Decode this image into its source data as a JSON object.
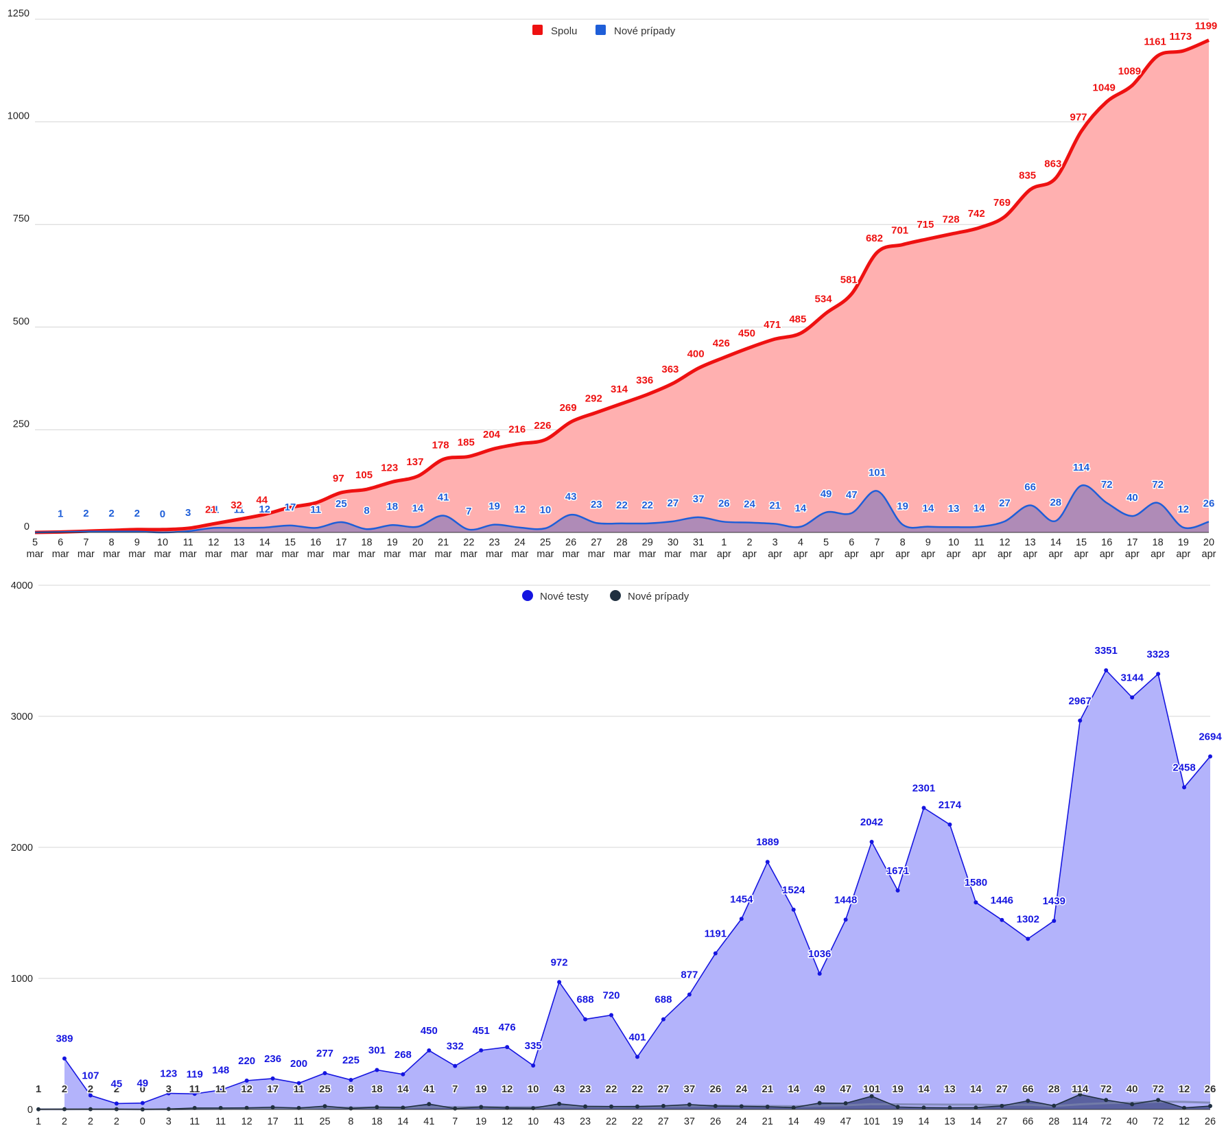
{
  "chart_data": [
    {
      "type": "area",
      "y_ticks": [
        "0",
        "250",
        "500",
        "750",
        "1000",
        "1250"
      ],
      "ylim": [
        0,
        1250
      ],
      "grid": true,
      "legend_position": "top-center",
      "colors": {
        "total": "#ee1111",
        "total_fill": "#ffb0b0",
        "new": "#1e5ed8",
        "new_fill": "rgba(110,110,190,0.55)"
      },
      "categories": [
        [
          "5",
          "mar"
        ],
        [
          "6",
          "mar"
        ],
        [
          "7",
          "mar"
        ],
        [
          "8",
          "mar"
        ],
        [
          "9",
          "mar"
        ],
        [
          "10",
          "mar"
        ],
        [
          "11",
          "mar"
        ],
        [
          "12",
          "mar"
        ],
        [
          "13",
          "mar"
        ],
        [
          "14",
          "mar"
        ],
        [
          "15",
          "mar"
        ],
        [
          "16",
          "mar"
        ],
        [
          "17",
          "mar"
        ],
        [
          "18",
          "mar"
        ],
        [
          "19",
          "mar"
        ],
        [
          "20",
          "mar"
        ],
        [
          "21",
          "mar"
        ],
        [
          "22",
          "mar"
        ],
        [
          "23",
          "mar"
        ],
        [
          "24",
          "mar"
        ],
        [
          "25",
          "mar"
        ],
        [
          "26",
          "mar"
        ],
        [
          "27",
          "mar"
        ],
        [
          "28",
          "mar"
        ],
        [
          "29",
          "mar"
        ],
        [
          "30",
          "mar"
        ],
        [
          "31",
          "mar"
        ],
        [
          "1",
          "apr"
        ],
        [
          "2",
          "apr"
        ],
        [
          "3",
          "apr"
        ],
        [
          "4",
          "apr"
        ],
        [
          "5",
          "apr"
        ],
        [
          "6",
          "apr"
        ],
        [
          "7",
          "apr"
        ],
        [
          "8",
          "apr"
        ],
        [
          "9",
          "apr"
        ],
        [
          "10",
          "apr"
        ],
        [
          "11",
          "apr"
        ],
        [
          "12",
          "apr"
        ],
        [
          "13",
          "apr"
        ],
        [
          "14",
          "apr"
        ],
        [
          "15",
          "apr"
        ],
        [
          "16",
          "apr"
        ],
        [
          "17",
          "apr"
        ],
        [
          "18",
          "apr"
        ],
        [
          "19",
          "apr"
        ],
        [
          "20",
          "apr"
        ]
      ],
      "series": [
        {
          "name": "Spolu",
          "values": [
            0,
            1,
            3,
            5,
            7,
            7,
            10,
            21,
            32,
            44,
            61,
            72,
            97,
            105,
            123,
            137,
            178,
            185,
            204,
            216,
            226,
            269,
            292,
            314,
            336,
            363,
            400,
            426,
            450,
            471,
            485,
            534,
            581,
            682,
            701,
            715,
            728,
            742,
            769,
            835,
            863,
            977,
            1049,
            1089,
            1161,
            1173,
            1199
          ],
          "labels": [
            "",
            "",
            "",
            "",
            "",
            "",
            "",
            "21",
            "32",
            "44",
            "",
            "",
            "97",
            "105",
            "123",
            "137",
            "178",
            "185",
            "204",
            "216",
            "226",
            "269",
            "292",
            "314",
            "336",
            "363",
            "400",
            "426",
            "450",
            "471",
            "485",
            "534",
            "581",
            "682",
            "701",
            "715",
            "728",
            "742",
            "769",
            "835",
            "863",
            "977",
            "1049",
            "1089",
            "1161",
            "1173",
            "1199"
          ]
        },
        {
          "name": "Nové prípady",
          "values": [
            0,
            1,
            2,
            2,
            2,
            0,
            3,
            11,
            11,
            12,
            17,
            11,
            25,
            8,
            18,
            14,
            41,
            7,
            19,
            12,
            10,
            43,
            23,
            22,
            22,
            27,
            37,
            26,
            24,
            21,
            14,
            49,
            47,
            101,
            19,
            14,
            13,
            14,
            27,
            66,
            28,
            114,
            72,
            40,
            72,
            12,
            26
          ],
          "labels": [
            "",
            "1",
            "2",
            "2",
            "2",
            "0",
            "3",
            "11",
            "11",
            "12",
            "17",
            "11",
            "25",
            "8",
            "18",
            "14",
            "41",
            "7",
            "19",
            "12",
            "10",
            "43",
            "23",
            "22",
            "22",
            "27",
            "37",
            "26",
            "24",
            "21",
            "14",
            "49",
            "47",
            "101",
            "19",
            "14",
            "13",
            "14",
            "27",
            "66",
            "28",
            "114",
            "72",
            "40",
            "72",
            "12",
            "26"
          ]
        }
      ]
    },
    {
      "type": "area",
      "y_ticks": [
        "0",
        "1000",
        "2000",
        "3000",
        "4000"
      ],
      "ylim": [
        0,
        4000
      ],
      "grid": true,
      "legend_position": "top-center",
      "colors": {
        "tests": "#1515e0",
        "tests_fill": "#b3b3fb",
        "cases": "#203040",
        "cases_fill": "rgba(60,70,130,0.75)",
        "avg": "rgba(120,130,170,0.8)"
      },
      "x": [
        "1",
        "2",
        "2",
        "2",
        "0",
        "3",
        "11",
        "11",
        "12",
        "17",
        "11",
        "25",
        "8",
        "18",
        "14",
        "41",
        "7",
        "19",
        "12",
        "10",
        "43",
        "23",
        "22",
        "22",
        "27",
        "37",
        "26",
        "24",
        "21",
        "14",
        "49",
        "47",
        "101",
        "19",
        "14",
        "13",
        "14",
        "27",
        "66",
        "28",
        "114",
        "72",
        "40",
        "72",
        "12",
        "26"
      ],
      "series": [
        {
          "name": "Nové testy",
          "values": [
            null,
            389,
            107,
            45,
            49,
            123,
            119,
            148,
            220,
            236,
            200,
            277,
            225,
            301,
            268,
            450,
            332,
            451,
            476,
            335,
            972,
            688,
            720,
            401,
            688,
            877,
            1191,
            1454,
            1889,
            1524,
            1036,
            1448,
            2042,
            1671,
            2301,
            2174,
            1580,
            1446,
            1302,
            1439,
            2967,
            3351,
            3144,
            3323,
            2458,
            2694
          ],
          "labels": [
            "",
            "389",
            "107",
            "45",
            "49",
            "123",
            "119",
            "148",
            "220",
            "236",
            "200",
            "277",
            "225",
            "301",
            "268",
            "450",
            "332",
            "451",
            "476",
            "335",
            "972",
            "688",
            "720",
            "401",
            "688",
            "877",
            "1191",
            "1454",
            "1889",
            "1524",
            "1036",
            "1448",
            "2042",
            "1671",
            "2301",
            "2174",
            "1580",
            "1446",
            "1302",
            "1439",
            "2967",
            "3351",
            "3144",
            "3323",
            "2458",
            "2694"
          ]
        },
        {
          "name": "Nové prípady",
          "values": [
            1,
            2,
            2,
            2,
            0,
            3,
            11,
            11,
            12,
            17,
            11,
            25,
            8,
            18,
            14,
            41,
            7,
            19,
            12,
            10,
            43,
            23,
            22,
            22,
            27,
            37,
            26,
            24,
            21,
            14,
            49,
            47,
            101,
            19,
            14,
            13,
            14,
            27,
            66,
            28,
            114,
            72,
            40,
            72,
            12,
            26
          ],
          "labels": [
            "1",
            "2",
            "2",
            "2",
            "0",
            "3",
            "11",
            "11",
            "12",
            "17",
            "11",
            "25",
            "8",
            "18",
            "14",
            "41",
            "7",
            "19",
            "12",
            "10",
            "43",
            "23",
            "22",
            "22",
            "27",
            "37",
            "26",
            "24",
            "21",
            "14",
            "49",
            "47",
            "101",
            "19",
            "14",
            "13",
            "14",
            "27",
            "66",
            "28",
            "114",
            "72",
            "40",
            "72",
            "12",
            "26"
          ]
        }
      ]
    }
  ]
}
